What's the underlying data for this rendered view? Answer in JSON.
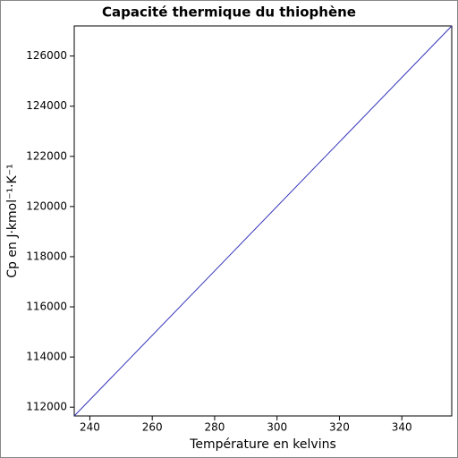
{
  "chart_data": {
    "type": "line",
    "title": "Capacité thermique du thiophène",
    "xlabel": "Température en kelvins",
    "ylabel": "Cp en J·kmol⁻¹·K⁻¹",
    "x": [
      235,
      356
    ],
    "series": [
      {
        "name": "Cp",
        "color": "#3333bb",
        "values": [
          111650,
          127200
        ]
      }
    ],
    "xlim": [
      235,
      356
    ],
    "ylim": [
      111650,
      127200
    ],
    "xticks": [
      240,
      260,
      280,
      300,
      320,
      340
    ],
    "yticks": [
      112000,
      114000,
      116000,
      118000,
      120000,
      122000,
      124000,
      126000
    ],
    "grid": false
  }
}
